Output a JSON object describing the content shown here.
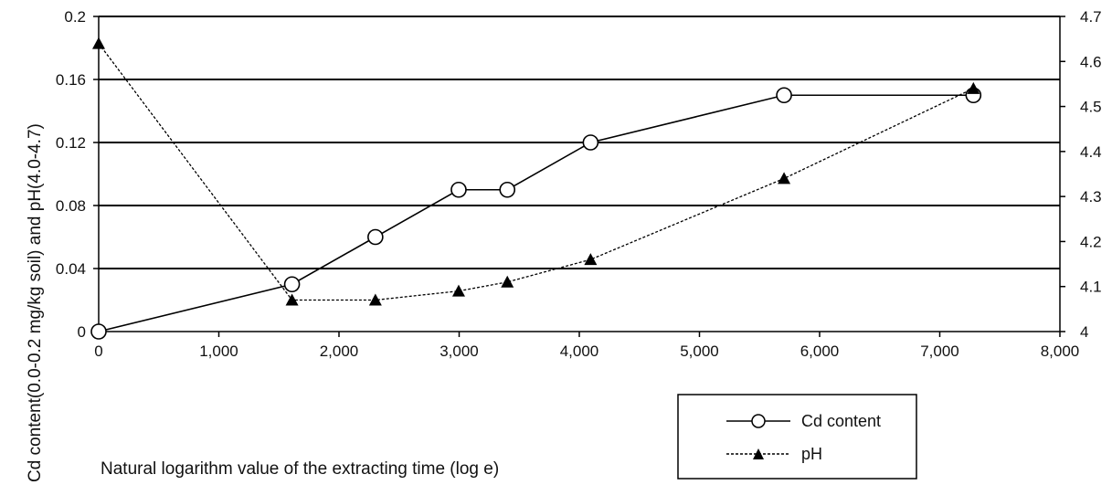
{
  "chart_data": {
    "type": "line",
    "xlabel": "Natural logarithm value of the extracting time (log e)",
    "ylabel": "Cd content(0.0-0.2  mg/kg soil) and pH(4.0-4.7)",
    "xlim": [
      0,
      8
    ],
    "ylim_left": [
      0,
      0.2
    ],
    "ylim_right": [
      4,
      4.7
    ],
    "x_ticks": [
      "0",
      "1,000",
      "2,000",
      "3,000",
      "4,000",
      "5,000",
      "6,000",
      "7,000",
      "8,000"
    ],
    "y_left_ticks": [
      "0",
      "0.04",
      "0.08",
      "0.12",
      "0.16",
      "0.2"
    ],
    "y_right_ticks": [
      "4",
      "4.1",
      "4.2",
      "4.3",
      "4.4",
      "4.5",
      "4.6",
      "4.7"
    ],
    "grid": "horizontal",
    "legend_position": "bottom-right",
    "series": [
      {
        "name": "Cd content",
        "axis": "left",
        "marker": "open-circle",
        "line": "solid",
        "color": "#000000",
        "x": [
          0,
          1.609,
          2.303,
          2.996,
          3.401,
          4.094,
          5.704,
          7.28
        ],
        "y": [
          0,
          0.03,
          0.06,
          0.09,
          0.09,
          0.12,
          0.15,
          0.15
        ]
      },
      {
        "name": "pH",
        "axis": "right",
        "marker": "filled-triangle",
        "line": "dashed",
        "color": "#000000",
        "x": [
          0,
          1.609,
          2.303,
          2.996,
          3.401,
          4.094,
          5.704,
          7.28
        ],
        "y": [
          4.64,
          4.07,
          4.07,
          4.09,
          4.11,
          4.16,
          4.34,
          4.54
        ]
      }
    ]
  }
}
